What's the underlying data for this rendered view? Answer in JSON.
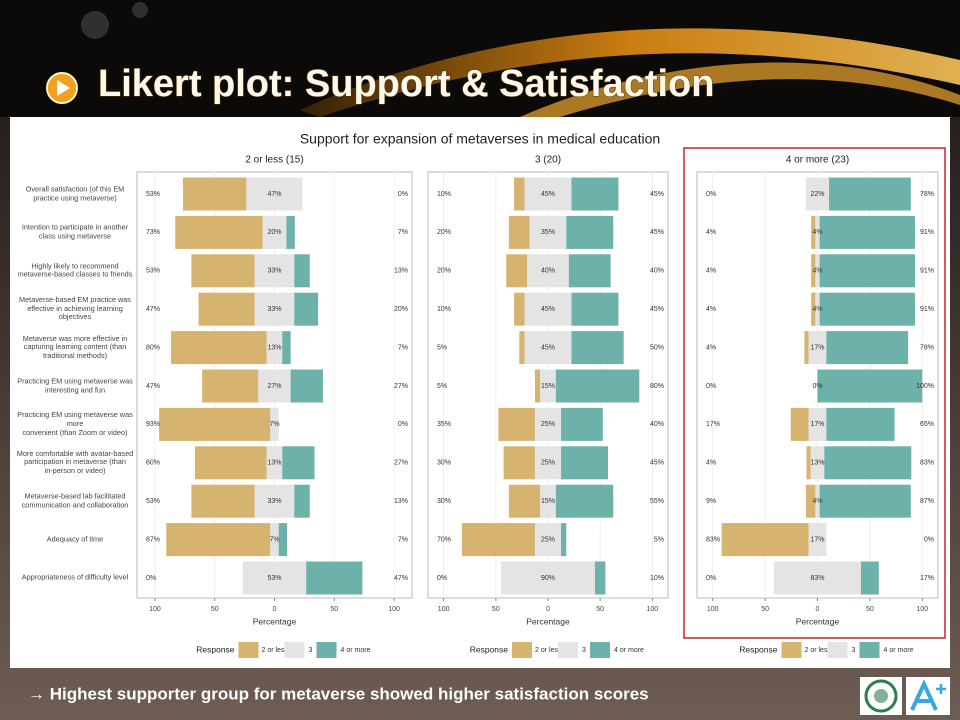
{
  "slide": {
    "title": "Likert plot: Support & Satisfaction",
    "footer": "→ Highest supporter group for metaverse showed higher satisfaction scores"
  },
  "chart_data": {
    "type": "likert",
    "title": "Support for expansion of metaverses in medical education",
    "xlabel": "Percentage",
    "legend_title": "Response",
    "xlim": [
      -115,
      115
    ],
    "xticks": [
      {
        "value": -100,
        "label": "100"
      },
      {
        "value": -50,
        "label": "50"
      },
      0,
      50,
      100
    ],
    "grid": true,
    "categories": [
      "Overall satisfaction (of this EM\npractice using metaverse)",
      "Intention to participate in another\nclass using metaverse",
      "Highly likely to recommend\nmetaverse-based classes to friends",
      "Metaverse-based EM practice was\neffective in achieving learning\nobjectives",
      "Metaverse was more effective in\ncapturing learning content (than\ntraditional methods)",
      "Practicing EM using metaverse was\ninteresting and fun",
      "Practicing EM using metaverse was more\nconvenient (than Zoom or video)",
      "More comfortable with avatar-based\nparticipation in metaverse (than\nin-person or video)",
      "Metaverse-based lab facilitated\ncommunication and collaboration",
      "Adequacy of time",
      "Appropriateness of difficulty level"
    ],
    "panels": [
      {
        "title": "2 or less (15)",
        "series": [
          {
            "name": "2 or less",
            "color": "#d6b36e",
            "values": [
              53,
              73,
              53,
              47,
              80,
              47,
              93,
              60,
              53,
              87,
              0
            ],
            "value_labels": [
              "53%",
              "73%",
              "53%",
              "47%",
              "80%",
              "47%",
              "93%",
              "60%",
              "53%",
              "87%",
              "0%"
            ]
          },
          {
            "name": "3",
            "color": "#e4e4e4",
            "values": [
              47,
              20,
              33,
              33,
              13,
              27,
              7,
              13,
              33,
              7,
              53
            ],
            "value_labels": [
              "47%",
              "20%",
              "33%",
              "33%",
              "13%",
              "27%",
              "7%",
              "13%",
              "33%",
              "7%",
              "53%"
            ]
          },
          {
            "name": "4 or more",
            "color": "#6db2aa",
            "values": [
              0,
              7,
              13,
              20,
              7,
              27,
              0,
              27,
              13,
              7,
              47
            ],
            "value_labels": [
              "0%",
              "7%",
              "13%",
              "20%",
              "7%",
              "27%",
              "0%",
              "27%",
              "13%",
              "7%",
              "47%"
            ]
          }
        ]
      },
      {
        "title": "3 (20)",
        "series": [
          {
            "name": "2 or less",
            "color": "#d6b36e",
            "values": [
              10,
              20,
              20,
              10,
              5,
              5,
              35,
              30,
              30,
              70,
              0
            ],
            "value_labels": [
              "10%",
              "20%",
              "20%",
              "10%",
              "5%",
              "5%",
              "35%",
              "30%",
              "30%",
              "70%",
              "0%"
            ]
          },
          {
            "name": "3",
            "color": "#e4e4e4",
            "values": [
              45,
              35,
              40,
              45,
              45,
              15,
              25,
              25,
              15,
              25,
              90
            ],
            "value_labels": [
              "45%",
              "35%",
              "40%",
              "45%",
              "45%",
              "15%",
              "25%",
              "25%",
              "15%",
              "25%",
              "90%"
            ]
          },
          {
            "name": "4 or more",
            "color": "#6db2aa",
            "values": [
              45,
              45,
              40,
              45,
              50,
              80,
              40,
              45,
              55,
              5,
              10
            ],
            "value_labels": [
              "45%",
              "45%",
              "40%",
              "45%",
              "50%",
              "80%",
              "40%",
              "45%",
              "55%",
              "5%",
              "10%"
            ]
          }
        ]
      },
      {
        "title": "4 or more (23)",
        "series": [
          {
            "name": "2 or less",
            "color": "#d6b36e",
            "values": [
              0,
              4,
              4,
              4,
              4,
              0,
              17,
              4,
              9,
              83,
              0
            ],
            "value_labels": [
              "0%",
              "4%",
              "4%",
              "4%",
              "4%",
              "0%",
              "17%",
              "4%",
              "9%",
              "83%",
              "0%"
            ]
          },
          {
            "name": "3",
            "color": "#e4e4e4",
            "values": [
              22,
              4,
              4,
              4,
              17,
              0,
              17,
              13,
              4,
              17,
              83
            ],
            "value_labels": [
              "22%",
              "4%",
              "4%",
              "4%",
              "17%",
              "0%",
              "17%",
              "13%",
              "4%",
              "17%",
              "83%"
            ]
          },
          {
            "name": "4 or more",
            "color": "#6db2aa",
            "values": [
              78,
              91,
              91,
              91,
              78,
              100,
              65,
              83,
              87,
              0,
              17
            ],
            "value_labels": [
              "78%",
              "91%",
              "91%",
              "91%",
              "78%",
              "100%",
              "65%",
              "83%",
              "87%",
              "0%",
              "17%"
            ]
          }
        ]
      }
    ]
  }
}
